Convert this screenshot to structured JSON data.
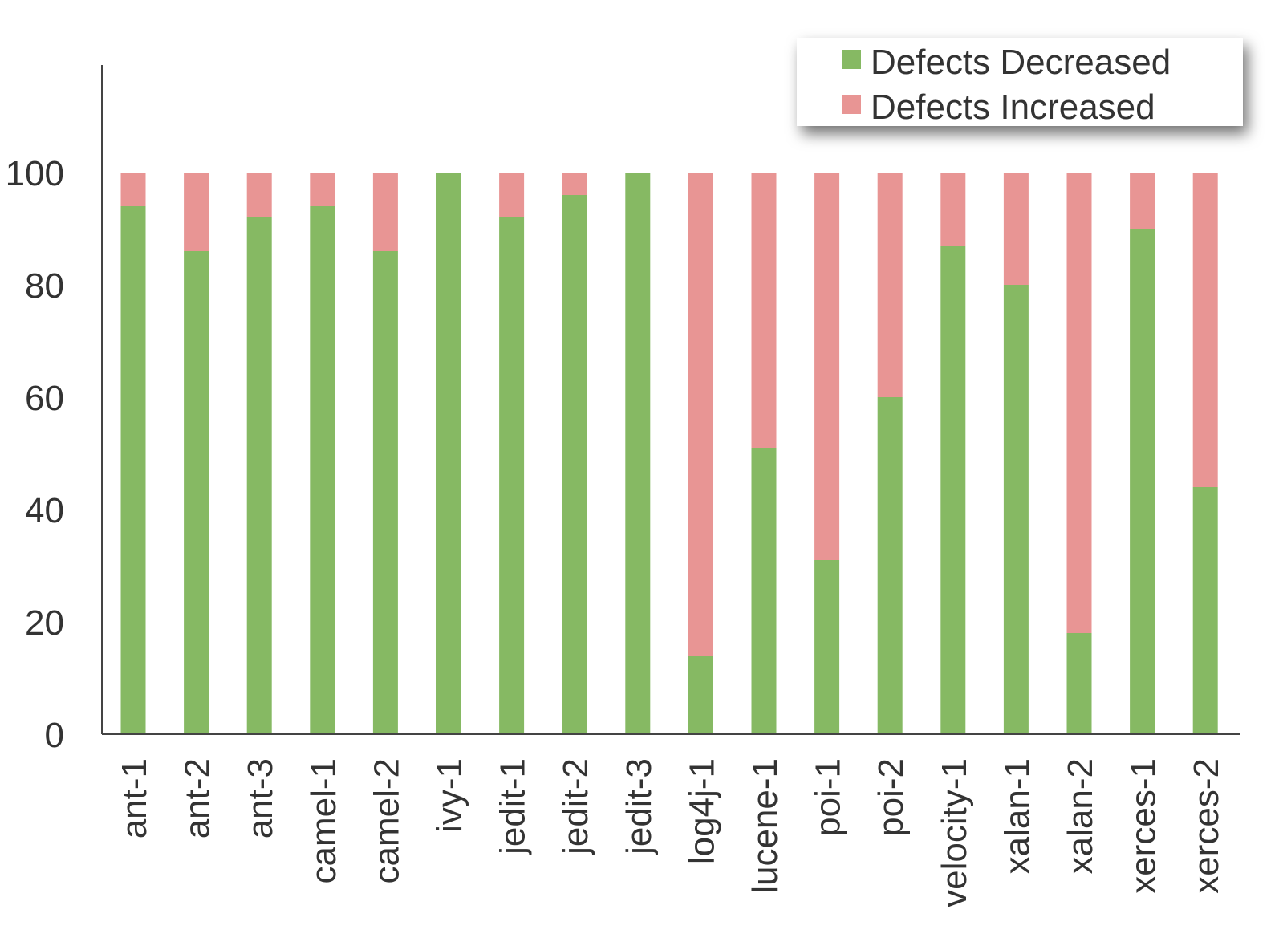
{
  "chart_data": {
    "type": "bar",
    "stacked": true,
    "categories": [
      "ant-1",
      "ant-2",
      "ant-3",
      "camel-1",
      "camel-2",
      "ivy-1",
      "jedit-1",
      "jedit-2",
      "jedit-3",
      "log4j-1",
      "lucene-1",
      "poi-1",
      "poi-2",
      "velocity-1",
      "xalan-1",
      "xalan-2",
      "xerces-1",
      "xerces-2"
    ],
    "series": [
      {
        "name": "Defects Decreased",
        "color": "#86b963",
        "values": [
          94,
          86,
          92,
          94,
          86,
          100,
          92,
          96,
          100,
          14,
          51,
          31,
          60,
          87,
          80,
          18,
          90,
          44
        ]
      },
      {
        "name": "Defects Increased",
        "color": "#e89594",
        "values": [
          6,
          14,
          8,
          6,
          14,
          0,
          8,
          4,
          0,
          86,
          49,
          69,
          40,
          13,
          20,
          82,
          10,
          56
        ]
      }
    ],
    "yticks": [
      0,
      20,
      40,
      60,
      80,
      100
    ],
    "ylim": [
      0,
      119
    ],
    "grid": false,
    "legend_position": "top-right",
    "xlabel": "",
    "ylabel": "",
    "title": ""
  }
}
